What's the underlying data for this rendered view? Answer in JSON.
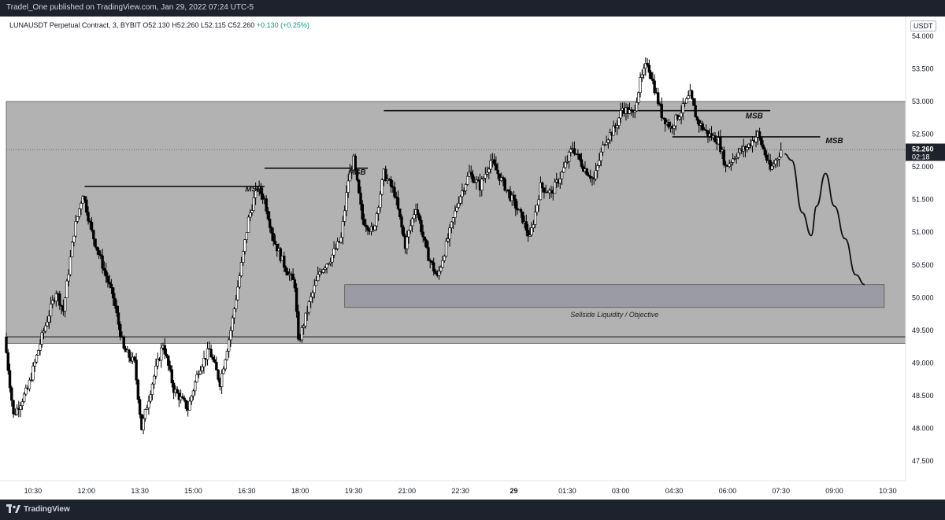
{
  "header": {
    "publisher_text": "Tradel_One published on TradingView.com, Jan 29, 2022 07:24 UTC-5"
  },
  "footer": {
    "brand": "TradingView"
  },
  "legend": {
    "symbol": "LUNAUSDT Perpetual Contract, 3, BYBIT",
    "open": "O52.130",
    "high": "H52.260",
    "low": "L52.115",
    "close": "C52.260",
    "change": "+0.130 (+0.25%)"
  },
  "currency_label": "USDT",
  "last_price": {
    "value": "52.260",
    "countdown": "02:18",
    "color": "#1e222d"
  },
  "colors": {
    "range_fill": "#b2b2b2",
    "objective_fill": "#9b9ba4",
    "candle": "#000000",
    "background": "#ffffff"
  },
  "chart_data": {
    "type": "candlestick",
    "symbol": "LUNAUSDT Perpetual Contract",
    "interval": "3",
    "exchange": "BYBIT",
    "ylim": [
      47.2,
      54.3
    ],
    "y_ticks": [
      "54.000",
      "53.500",
      "53.000",
      "52.500",
      "52.000",
      "51.500",
      "51.000",
      "50.500",
      "50.000",
      "49.500",
      "49.000",
      "48.500",
      "48.000",
      "47.500"
    ],
    "x_ticks": [
      "10:30",
      "12:00",
      "13:30",
      "15:00",
      "16:30",
      "18:00",
      "19:30",
      "21:00",
      "22:30",
      "29",
      "01:30",
      "03:00",
      "04:30",
      "06:00",
      "07:30",
      "09:00",
      "10:30"
    ],
    "x_tick_hours": [
      10.5,
      12,
      13.5,
      15,
      16.5,
      18,
      19.5,
      21,
      22.5,
      24,
      25.5,
      27,
      28.5,
      30,
      31.5,
      33,
      34.5
    ],
    "x_range_hours": [
      9.75,
      35.0
    ],
    "price_path": [
      [
        9.75,
        49.4
      ],
      [
        10.0,
        48.2
      ],
      [
        10.4,
        48.6
      ],
      [
        10.8,
        49.4
      ],
      [
        11.2,
        50.1
      ],
      [
        11.4,
        49.8
      ],
      [
        11.7,
        51.0
      ],
      [
        11.95,
        51.6
      ],
      [
        12.2,
        51.0
      ],
      [
        12.5,
        50.5
      ],
      [
        12.8,
        50.0
      ],
      [
        13.1,
        49.2
      ],
      [
        13.4,
        49.0
      ],
      [
        13.6,
        48.0
      ],
      [
        13.9,
        48.7
      ],
      [
        14.2,
        49.3
      ],
      [
        14.5,
        48.6
      ],
      [
        14.9,
        48.3
      ],
      [
        15.2,
        48.9
      ],
      [
        15.5,
        49.2
      ],
      [
        15.8,
        48.7
      ],
      [
        16.1,
        49.5
      ],
      [
        16.4,
        50.5
      ],
      [
        16.6,
        51.2
      ],
      [
        16.85,
        51.7
      ],
      [
        17.05,
        51.5
      ],
      [
        17.3,
        50.9
      ],
      [
        17.6,
        50.5
      ],
      [
        17.9,
        50.2
      ],
      [
        18.0,
        49.3
      ],
      [
        18.3,
        49.9
      ],
      [
        18.6,
        50.4
      ],
      [
        18.9,
        50.6
      ],
      [
        19.2,
        50.9
      ],
      [
        19.4,
        51.8
      ],
      [
        19.55,
        52.1
      ],
      [
        19.8,
        51.2
      ],
      [
        20.1,
        51.0
      ],
      [
        20.4,
        51.9
      ],
      [
        20.7,
        51.6
      ],
      [
        21.0,
        50.8
      ],
      [
        21.3,
        51.4
      ],
      [
        21.6,
        50.7
      ],
      [
        21.9,
        50.3
      ],
      [
        22.2,
        50.9
      ],
      [
        22.5,
        51.5
      ],
      [
        22.8,
        51.9
      ],
      [
        23.1,
        51.7
      ],
      [
        23.4,
        52.1
      ],
      [
        23.7,
        51.8
      ],
      [
        24.0,
        51.5
      ],
      [
        24.3,
        51.2
      ],
      [
        24.5,
        50.9
      ],
      [
        24.8,
        51.7
      ],
      [
        25.1,
        51.6
      ],
      [
        25.4,
        51.9
      ],
      [
        25.7,
        52.3
      ],
      [
        26.0,
        52.0
      ],
      [
        26.3,
        51.8
      ],
      [
        26.6,
        52.4
      ],
      [
        26.9,
        52.6
      ],
      [
        27.1,
        52.9
      ],
      [
        27.4,
        52.8
      ],
      [
        27.6,
        53.3
      ],
      [
        27.8,
        53.6
      ],
      [
        28.0,
        53.2
      ],
      [
        28.2,
        52.8
      ],
      [
        28.45,
        52.6
      ],
      [
        28.8,
        52.9
      ],
      [
        29.0,
        53.1
      ],
      [
        29.2,
        52.7
      ],
      [
        29.5,
        52.5
      ],
      [
        29.8,
        52.4
      ],
      [
        30.0,
        52.0
      ],
      [
        30.3,
        52.2
      ],
      [
        30.6,
        52.3
      ],
      [
        30.9,
        52.5
      ],
      [
        31.1,
        52.2
      ],
      [
        31.25,
        51.95
      ],
      [
        31.45,
        52.15
      ],
      [
        31.55,
        52.26
      ]
    ],
    "projection_path": [
      [
        31.6,
        52.2
      ],
      [
        31.8,
        52.1
      ],
      [
        32.1,
        51.3
      ],
      [
        32.35,
        50.95
      ],
      [
        32.5,
        51.4
      ],
      [
        32.75,
        51.9
      ],
      [
        33.0,
        51.4
      ],
      [
        33.3,
        50.9
      ],
      [
        33.6,
        50.35
      ],
      [
        33.85,
        50.2
      ]
    ],
    "last_price": 52.26,
    "zones": [
      {
        "name": "range-box",
        "y_low": 49.3,
        "y_high": 53.0,
        "x_from": 9.75,
        "x_to": 35.0,
        "fill": "#b2b2b2"
      },
      {
        "name": "objective-box",
        "y_low": 49.85,
        "y_high": 50.2,
        "x_from": 19.25,
        "x_to": 34.4,
        "fill": "#9b9ba4",
        "label": "Sellside Liquidity / Objective"
      }
    ],
    "horizontal_lines": [
      {
        "y": 49.4,
        "x_from": 9.75,
        "x_to": 35.0
      },
      {
        "y": 51.7,
        "x_from": 11.95,
        "x_to": 17.0
      },
      {
        "y": 51.98,
        "x_from": 17.0,
        "x_to": 19.9
      },
      {
        "y": 52.86,
        "x_from": 20.35,
        "x_to": 31.2
      },
      {
        "y": 52.46,
        "x_from": 28.45,
        "x_to": 32.6
      }
    ],
    "annotations": [
      {
        "text": "MSB",
        "x": 16.7,
        "y": 51.62
      },
      {
        "text": "MSB",
        "x": 19.6,
        "y": 51.88
      },
      {
        "text": "MSB",
        "x": 30.75,
        "y": 52.74
      },
      {
        "text": "MSB",
        "x": 33.0,
        "y": 52.36
      }
    ]
  }
}
